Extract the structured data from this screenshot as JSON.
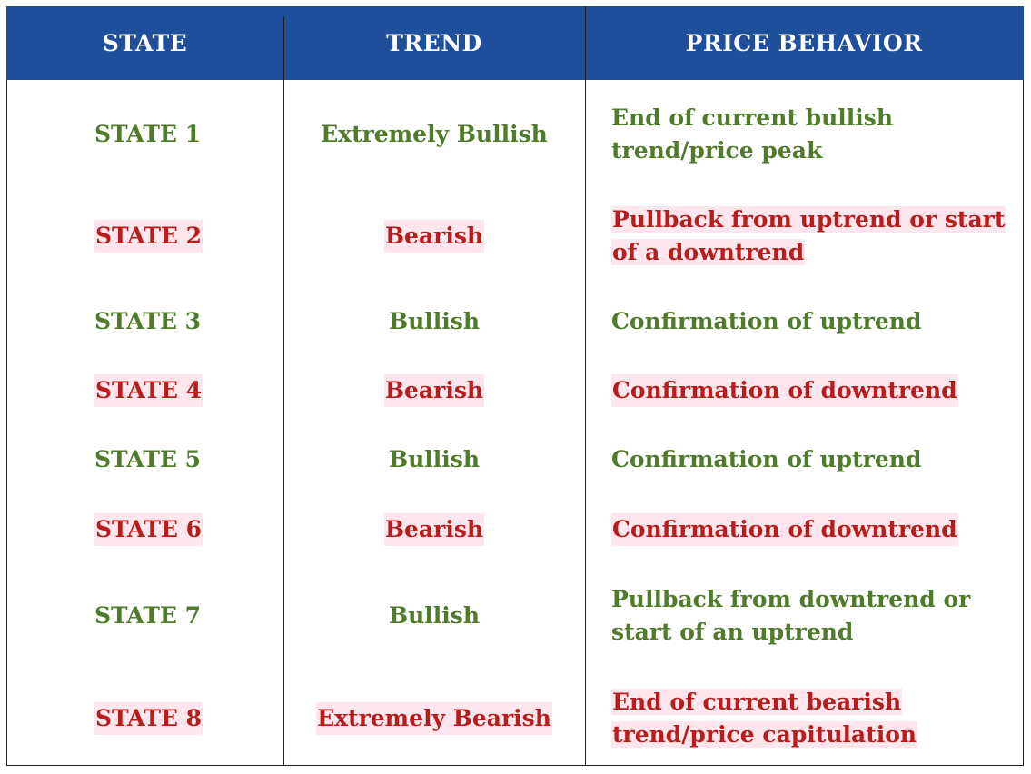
{
  "header": {
    "col_state": "STATE",
    "col_trend": "TREND",
    "col_price": "PRICE BEHAVIOR"
  },
  "rows": [
    {
      "state": "STATE 1",
      "trend": "Extremely Bullish",
      "price_line1": "End of current bullish",
      "price_line2": "trend/price peak",
      "tone": "green"
    },
    {
      "state": "STATE 2",
      "trend": "Bearish",
      "price_line1": "Pullback from uptrend or start",
      "price_line2": "of a downtrend",
      "tone": "red"
    },
    {
      "state": "STATE 3",
      "trend": "Bullish",
      "price_line1": "Confirmation of uptrend",
      "price_line2": "",
      "tone": "green"
    },
    {
      "state": "STATE 4",
      "trend": "Bearish",
      "price_line1": "Confirmation of downtrend",
      "price_line2": "",
      "tone": "red"
    },
    {
      "state": "STATE 5",
      "trend": "Bullish",
      "price_line1": "Confirmation of uptrend",
      "price_line2": "",
      "tone": "green"
    },
    {
      "state": "STATE 6",
      "trend": "Bearish",
      "price_line1": "Confirmation of downtrend",
      "price_line2": "",
      "tone": "red"
    },
    {
      "state": "STATE 7",
      "trend": "Bullish",
      "price_line1": "Pullback from downtrend or",
      "price_line2": "start of an uptrend",
      "tone": "green"
    },
    {
      "state": "STATE 8",
      "trend": "Extremely Bearish",
      "price_line1": "End of current bearish",
      "price_line2": "trend/price capitulation",
      "tone": "red"
    }
  ],
  "colors": {
    "header_bg": "#1f4e9a",
    "bullish_text": "#4f7b2a",
    "bearish_text": "#b81d1d",
    "bearish_highlight": "#fde6ec"
  }
}
